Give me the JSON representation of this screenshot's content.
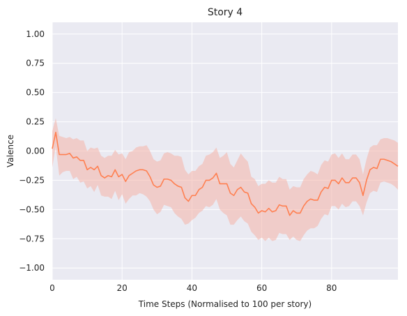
{
  "chart_data": {
    "type": "line",
    "title": "Story 4",
    "xlabel": "Time Steps (Normalised to 100 per story)",
    "ylabel": "Valence",
    "xlim": [
      0,
      99
    ],
    "ylim": [
      -1.1,
      1.1
    ],
    "x_ticks": [
      0,
      20,
      40,
      60,
      80
    ],
    "y_ticks": [
      1.0,
      0.75,
      0.5,
      0.25,
      0.0,
      -0.25,
      -0.5,
      -0.75,
      -1.0
    ],
    "x_tick_labels": [
      "0",
      "20",
      "40",
      "60",
      "80"
    ],
    "y_tick_labels": [
      "1.00",
      "0.75",
      "0.50",
      "0.25",
      "0.00",
      "−0.25",
      "−0.50",
      "−0.75",
      "−1.00"
    ],
    "grid": true,
    "style": {
      "background": "#eaeaf2",
      "grid_color": "#ffffff",
      "line_color": "#ff7f50",
      "band_color": "#f4b3a8"
    },
    "series": [
      {
        "x": [
          0,
          1,
          2,
          3,
          4,
          5,
          6,
          7,
          8,
          9,
          10,
          11,
          12,
          13,
          14,
          15,
          16,
          17,
          18,
          19,
          20,
          21,
          22,
          23,
          24,
          25,
          26,
          27,
          28,
          29,
          30,
          31,
          32,
          33,
          34,
          35,
          36,
          37,
          38,
          39,
          40,
          41,
          42,
          43,
          44,
          45,
          46,
          47,
          48,
          49,
          50,
          51,
          52,
          53,
          54,
          55,
          56,
          57,
          58,
          59,
          60,
          61,
          62,
          63,
          64,
          65,
          66,
          67,
          68,
          69,
          70,
          71,
          72,
          73,
          74,
          75,
          76,
          77,
          78,
          79,
          80,
          81,
          82,
          83,
          84,
          85,
          86,
          87,
          88,
          89,
          90,
          91,
          92,
          93,
          94,
          95,
          96,
          97,
          98,
          99
        ],
        "y": [
          0.02,
          0.16,
          -0.03,
          -0.03,
          -0.03,
          -0.02,
          -0.06,
          -0.05,
          -0.08,
          -0.08,
          -0.16,
          -0.14,
          -0.16,
          -0.13,
          -0.21,
          -0.23,
          -0.21,
          -0.22,
          -0.16,
          -0.22,
          -0.2,
          -0.26,
          -0.21,
          -0.19,
          -0.17,
          -0.16,
          -0.16,
          -0.17,
          -0.22,
          -0.29,
          -0.31,
          -0.3,
          -0.24,
          -0.24,
          -0.25,
          -0.28,
          -0.3,
          -0.31,
          -0.4,
          -0.43,
          -0.38,
          -0.38,
          -0.33,
          -0.31,
          -0.25,
          -0.25,
          -0.23,
          -0.19,
          -0.28,
          -0.28,
          -0.28,
          -0.36,
          -0.38,
          -0.33,
          -0.31,
          -0.35,
          -0.36,
          -0.45,
          -0.48,
          -0.53,
          -0.51,
          -0.52,
          -0.49,
          -0.52,
          -0.51,
          -0.46,
          -0.47,
          -0.47,
          -0.55,
          -0.51,
          -0.53,
          -0.53,
          -0.47,
          -0.43,
          -0.41,
          -0.42,
          -0.42,
          -0.35,
          -0.31,
          -0.32,
          -0.25,
          -0.25,
          -0.28,
          -0.23,
          -0.27,
          -0.27,
          -0.23,
          -0.23,
          -0.27,
          -0.38,
          -0.25,
          -0.16,
          -0.14,
          -0.15,
          -0.07,
          -0.07,
          -0.08,
          -0.09,
          -0.11,
          -0.13
        ],
        "lower": [
          -0.14,
          0.04,
          -0.21,
          -0.18,
          -0.17,
          -0.17,
          -0.24,
          -0.22,
          -0.27,
          -0.26,
          -0.32,
          -0.3,
          -0.35,
          -0.29,
          -0.38,
          -0.39,
          -0.39,
          -0.41,
          -0.34,
          -0.42,
          -0.37,
          -0.45,
          -0.41,
          -0.38,
          -0.38,
          -0.36,
          -0.37,
          -0.39,
          -0.43,
          -0.5,
          -0.54,
          -0.52,
          -0.46,
          -0.47,
          -0.48,
          -0.53,
          -0.56,
          -0.58,
          -0.63,
          -0.62,
          -0.59,
          -0.57,
          -0.53,
          -0.51,
          -0.47,
          -0.48,
          -0.46,
          -0.41,
          -0.5,
          -0.53,
          -0.55,
          -0.63,
          -0.63,
          -0.59,
          -0.56,
          -0.6,
          -0.62,
          -0.69,
          -0.72,
          -0.76,
          -0.74,
          -0.77,
          -0.74,
          -0.77,
          -0.76,
          -0.7,
          -0.71,
          -0.71,
          -0.76,
          -0.73,
          -0.76,
          -0.77,
          -0.72,
          -0.68,
          -0.66,
          -0.66,
          -0.64,
          -0.58,
          -0.54,
          -0.55,
          -0.47,
          -0.47,
          -0.5,
          -0.45,
          -0.48,
          -0.47,
          -0.43,
          -0.43,
          -0.47,
          -0.55,
          -0.44,
          -0.36,
          -0.34,
          -0.35,
          -0.27,
          -0.26,
          -0.27,
          -0.28,
          -0.3,
          -0.33
        ],
        "upper": [
          0.17,
          0.28,
          0.13,
          0.12,
          0.11,
          0.12,
          0.1,
          0.11,
          0.09,
          0.09,
          0.0,
          0.03,
          0.02,
          0.03,
          -0.04,
          -0.06,
          -0.04,
          -0.04,
          0.01,
          -0.03,
          -0.02,
          -0.07,
          -0.01,
          0.0,
          0.03,
          0.04,
          0.04,
          0.05,
          0.0,
          -0.07,
          -0.09,
          -0.08,
          -0.02,
          -0.01,
          -0.02,
          -0.04,
          -0.04,
          -0.05,
          -0.16,
          -0.2,
          -0.17,
          -0.17,
          -0.13,
          -0.11,
          -0.04,
          -0.03,
          -0.01,
          0.03,
          -0.06,
          -0.04,
          -0.01,
          -0.11,
          -0.14,
          -0.08,
          -0.02,
          -0.06,
          -0.09,
          -0.22,
          -0.24,
          -0.3,
          -0.28,
          -0.28,
          -0.25,
          -0.27,
          -0.27,
          -0.22,
          -0.24,
          -0.24,
          -0.33,
          -0.3,
          -0.31,
          -0.31,
          -0.24,
          -0.2,
          -0.17,
          -0.18,
          -0.2,
          -0.12,
          -0.08,
          -0.09,
          -0.03,
          -0.02,
          -0.06,
          -0.02,
          -0.07,
          -0.07,
          -0.03,
          -0.03,
          -0.07,
          -0.2,
          -0.07,
          0.03,
          0.05,
          0.05,
          0.1,
          0.11,
          0.11,
          0.1,
          0.09,
          0.07
        ]
      }
    ]
  }
}
